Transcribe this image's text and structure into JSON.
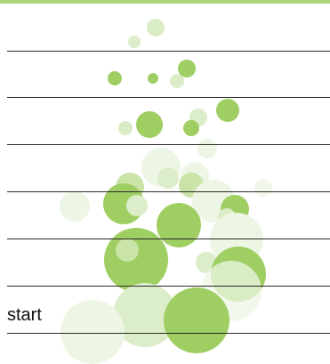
{
  "colors": {
    "accent": "#aad57a",
    "bubble_dark": "#9fce63",
    "bubble_light": "#dcedc9",
    "rule": "#2b2b2b"
  },
  "slots": {
    "last_label": "start"
  },
  "icon": "bubble-cluster-decoration"
}
